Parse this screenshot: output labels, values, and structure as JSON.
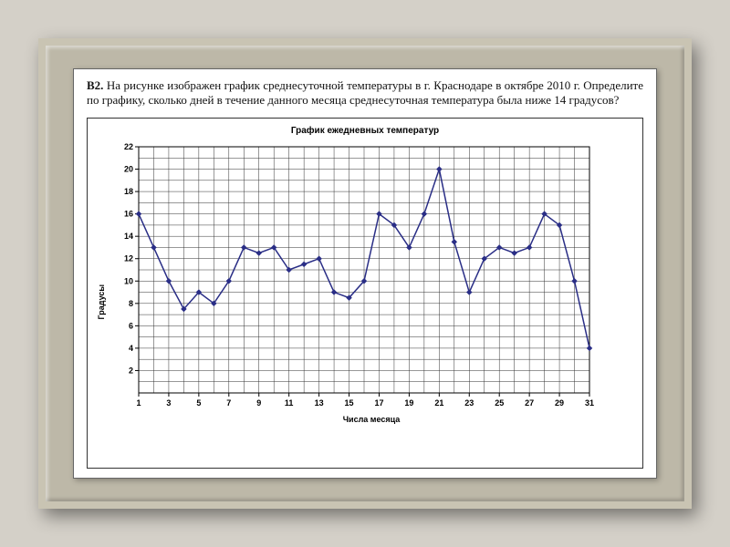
{
  "problem": {
    "tag": "B2.",
    "text": "На рисунке изображен график среднесуточной температуры в г. Краснодаре в октябре 2010 г. Определите по графику, сколько дней в течение данного месяца среднесуточная температура была ниже 14 градусов?"
  },
  "chart": {
    "type": "line",
    "title": "График ежедневных температур",
    "xlabel": "Числа месяца",
    "ylabel": "Градусы",
    "xlim": [
      1,
      31
    ],
    "ylim": [
      0,
      22
    ],
    "xticks": [
      1,
      3,
      5,
      7,
      9,
      11,
      13,
      15,
      17,
      19,
      21,
      23,
      25,
      27,
      29,
      31
    ],
    "yticks": [
      2,
      4,
      6,
      8,
      10,
      12,
      14,
      16,
      18,
      20,
      22
    ],
    "x_grid_step": 1,
    "y_grid_step": 1,
    "x": [
      1,
      2,
      3,
      4,
      5,
      6,
      7,
      8,
      9,
      10,
      11,
      12,
      13,
      14,
      15,
      16,
      17,
      18,
      19,
      20,
      21,
      22,
      23,
      24,
      25,
      26,
      27,
      28,
      29,
      30,
      31
    ],
    "y": [
      16,
      13,
      10,
      7.5,
      9,
      8,
      10,
      13,
      12.5,
      13,
      11,
      11.5,
      12,
      9,
      8.5,
      10,
      16,
      15,
      13,
      16,
      20,
      13.5,
      9,
      12,
      13,
      12.5,
      13,
      16,
      15,
      10,
      4
    ],
    "line_color": "#2a2e86",
    "marker_color": "#2a2e86",
    "marker_style": "diamond",
    "marker_size": 6,
    "line_width": 1.5,
    "grid_color": "#333333",
    "background_color": "#ffffff",
    "axis_color": "#000000",
    "tick_fontsize": 9,
    "tick_fontweight": "bold",
    "title_fontsize": 10,
    "label_fontsize": 9
  }
}
